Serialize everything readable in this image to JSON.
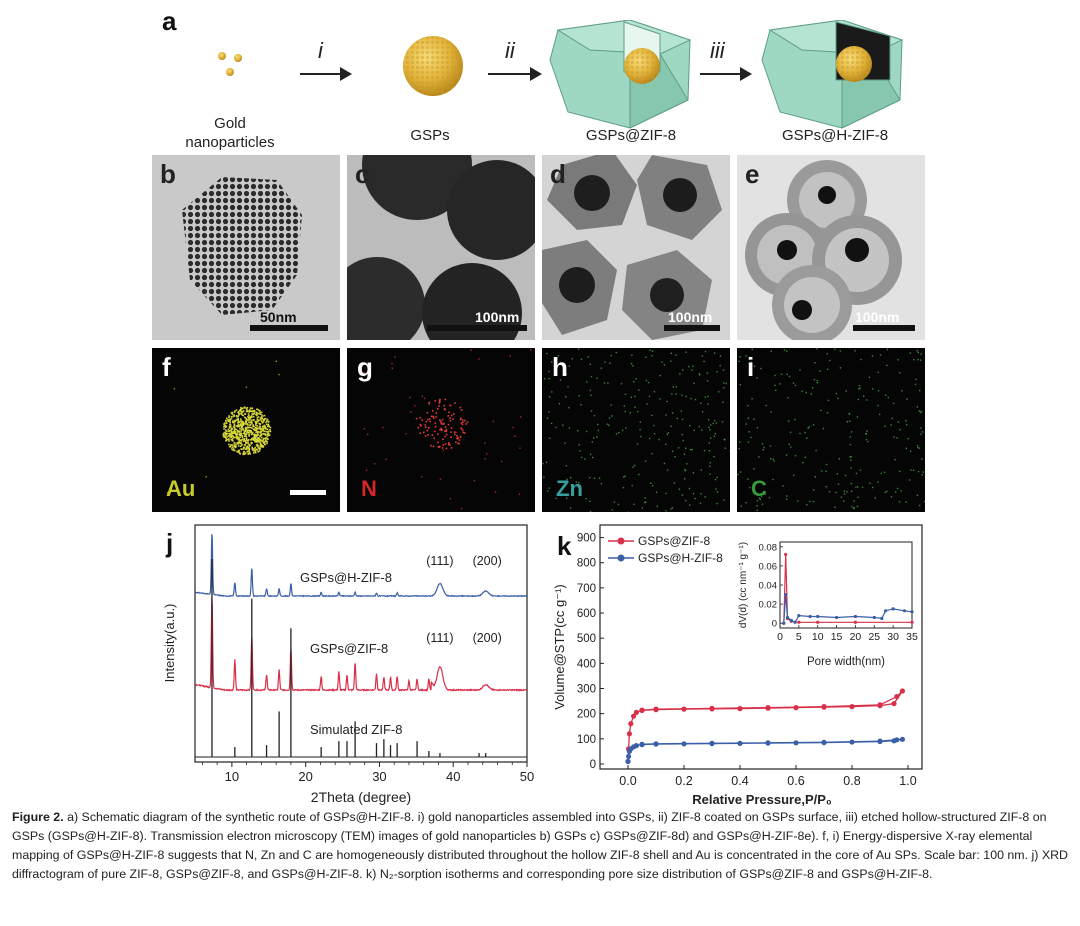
{
  "panels": {
    "a": "a",
    "b": "b",
    "c": "c",
    "d": "d",
    "e": "e",
    "f": "f",
    "g": "g",
    "h": "h",
    "i": "i",
    "j": "j",
    "k": "k"
  },
  "scheme": {
    "steps": [
      "i",
      "ii",
      "iii"
    ],
    "labels": [
      "Gold\nnanoparticles",
      "GSPs",
      "GSPs@ZIF-8",
      "GSPs@H-ZIF-8"
    ],
    "colors": {
      "gold": "#e2b33a",
      "shell": "#9ed8c2",
      "shell_dark": "#6fb79c",
      "cavity": "#1a1a1a"
    }
  },
  "tem": {
    "b_scale": "50nm",
    "c_scale": "100nm",
    "d_scale": "100nm",
    "e_scale": "100nm"
  },
  "eds": {
    "elements": [
      {
        "symbol": "Au",
        "color": "#c9c92a"
      },
      {
        "symbol": "N",
        "color": "#d02828"
      },
      {
        "symbol": "Zn",
        "color": "#35a0a0"
      },
      {
        "symbol": "C",
        "color": "#3a9a3a"
      }
    ]
  },
  "chart_data": [
    {
      "type": "line",
      "panel": "j",
      "xlabel": "2Theta (degree)",
      "ylabel": "Intensity(a.u.)",
      "xlim": [
        5,
        50
      ],
      "xticks": [
        10,
        20,
        30,
        40,
        50
      ],
      "series": [
        {
          "name": "GSPs@H-ZIF-8",
          "color": "#3a5fa8",
          "peaks": [
            [
              7.3,
              1.0
            ],
            [
              10.4,
              0.22
            ],
            [
              12.7,
              0.45
            ],
            [
              14.7,
              0.12
            ],
            [
              16.4,
              0.12
            ],
            [
              18.0,
              0.2
            ],
            [
              22.1,
              0.06
            ],
            [
              24.5,
              0.06
            ],
            [
              26.7,
              0.06
            ],
            [
              29.6,
              0.05
            ],
            [
              32.4,
              0.05
            ],
            [
              38.2,
              0.2
            ],
            [
              44.4,
              0.08
            ]
          ]
        },
        {
          "name": "GSPs@ZIF-8",
          "color": "#d9304a",
          "peaks": [
            [
              7.3,
              1.0
            ],
            [
              10.4,
              0.33
            ],
            [
              12.7,
              0.6
            ],
            [
              14.7,
              0.17
            ],
            [
              16.4,
              0.22
            ],
            [
              18.0,
              0.45
            ],
            [
              22.1,
              0.15
            ],
            [
              24.5,
              0.2
            ],
            [
              25.6,
              0.16
            ],
            [
              26.7,
              0.3
            ],
            [
              29.6,
              0.18
            ],
            [
              30.6,
              0.14
            ],
            [
              31.5,
              0.14
            ],
            [
              32.4,
              0.15
            ],
            [
              34.0,
              0.1
            ],
            [
              35.1,
              0.12
            ],
            [
              36.7,
              0.12
            ],
            [
              38.2,
              0.25
            ],
            [
              44.4,
              0.06
            ]
          ]
        },
        {
          "name": "Simulated ZIF-8",
          "color": "#222222",
          "peaks": [
            [
              7.3,
              1.0
            ],
            [
              10.4,
              0.05
            ],
            [
              12.7,
              0.8
            ],
            [
              14.7,
              0.06
            ],
            [
              16.4,
              0.23
            ],
            [
              18.0,
              0.65
            ],
            [
              22.1,
              0.05
            ],
            [
              24.5,
              0.08
            ],
            [
              25.6,
              0.08
            ],
            [
              26.7,
              0.18
            ],
            [
              29.6,
              0.07
            ],
            [
              30.6,
              0.09
            ],
            [
              31.5,
              0.06
            ],
            [
              32.4,
              0.07
            ],
            [
              35.1,
              0.08
            ],
            [
              36.7,
              0.03
            ],
            [
              38.2,
              0.02
            ],
            [
              43.5,
              0.02
            ],
            [
              44.4,
              0.02
            ]
          ]
        }
      ],
      "annotations": [
        "(111)",
        "(200)",
        "(111)",
        "(200)"
      ]
    },
    {
      "type": "line",
      "panel": "k",
      "xlabel": "Relative Pressure,P/P₀",
      "ylabel": "Volume@STP(cc g⁻¹)",
      "xlim": [
        -0.1,
        1.05
      ],
      "xticks": [
        0.0,
        0.2,
        0.4,
        0.6,
        0.8,
        1.0
      ],
      "yticks": [
        0,
        100,
        200,
        300,
        400,
        500,
        600,
        700,
        800,
        900
      ],
      "ylim": [
        -20,
        950
      ],
      "legend": "top-left",
      "series": [
        {
          "name": "GSPs@ZIF-8",
          "color": "#d9304a",
          "points": [
            [
              0.0,
              10
            ],
            [
              0.002,
              60
            ],
            [
              0.005,
              120
            ],
            [
              0.01,
              160
            ],
            [
              0.02,
              190
            ],
            [
              0.03,
              205
            ],
            [
              0.05,
              213
            ],
            [
              0.1,
              216
            ],
            [
              0.2,
              218
            ],
            [
              0.3,
              219
            ],
            [
              0.4,
              220
            ],
            [
              0.5,
              222
            ],
            [
              0.6,
              224
            ],
            [
              0.7,
              226
            ],
            [
              0.8,
              228
            ],
            [
              0.9,
              232
            ],
            [
              0.95,
              240
            ],
            [
              0.98,
              290
            ],
            [
              0.96,
              268
            ],
            [
              0.9,
              235
            ],
            [
              0.7,
              228
            ],
            [
              0.5,
              224
            ],
            [
              0.3,
              221
            ],
            [
              0.1,
              218
            ],
            [
              0.05,
              214
            ]
          ]
        },
        {
          "name": "GSPs@H-ZIF-8",
          "color": "#3a5fa8",
          "points": [
            [
              0.0,
              10
            ],
            [
              0.002,
              30
            ],
            [
              0.005,
              50
            ],
            [
              0.01,
              60
            ],
            [
              0.02,
              68
            ],
            [
              0.03,
              73
            ],
            [
              0.05,
              77
            ],
            [
              0.1,
              79
            ],
            [
              0.2,
              80
            ],
            [
              0.3,
              81
            ],
            [
              0.4,
              82
            ],
            [
              0.5,
              83
            ],
            [
              0.6,
              84
            ],
            [
              0.7,
              85
            ],
            [
              0.8,
              87
            ],
            [
              0.9,
              89
            ],
            [
              0.95,
              92
            ],
            [
              0.98,
              98
            ],
            [
              0.96,
              96
            ],
            [
              0.9,
              91
            ],
            [
              0.7,
              86
            ],
            [
              0.5,
              84
            ],
            [
              0.3,
              82
            ],
            [
              0.1,
              80
            ],
            [
              0.05,
              78
            ]
          ]
        }
      ],
      "inset": {
        "type": "line",
        "xlabel": "Pore width(nm)",
        "ylabel": "dV(d) (cc nm⁻¹ g⁻¹)",
        "xlim": [
          0,
          35
        ],
        "ylim": [
          -0.005,
          0.085
        ],
        "xticks": [
          0,
          5,
          10,
          15,
          20,
          25,
          30,
          35
        ],
        "yticks": [
          0,
          0.02,
          0.04,
          0.06,
          0.08
        ],
        "series": [
          {
            "name": "GSPs@ZIF-8",
            "color": "#d9304a",
            "points": [
              [
                1,
                0.0
              ],
              [
                1.5,
                0.072
              ],
              [
                2,
                0.005
              ],
              [
                3,
                0.002
              ],
              [
                5,
                0.001
              ],
              [
                10,
                0.001
              ],
              [
                20,
                0.001
              ],
              [
                35,
                0.001
              ]
            ]
          },
          {
            "name": "GSPs@H-ZIF-8",
            "color": "#3a5fa8",
            "points": [
              [
                1,
                0.0
              ],
              [
                1.5,
                0.03
              ],
              [
                2,
                0.006
              ],
              [
                3,
                0.003
              ],
              [
                4,
                0.001
              ],
              [
                5,
                0.008
              ],
              [
                8,
                0.007
              ],
              [
                10,
                0.007
              ],
              [
                15,
                0.006
              ],
              [
                20,
                0.007
              ],
              [
                25,
                0.006
              ],
              [
                27,
                0.005
              ],
              [
                28,
                0.013
              ],
              [
                30,
                0.015
              ],
              [
                33,
                0.013
              ],
              [
                35,
                0.012
              ]
            ]
          }
        ]
      }
    }
  ],
  "caption": {
    "label": "Figure 2.",
    "text": "a) Schematic diagram of the synthetic route of GSPs@H-ZIF-8. i) gold nanoparticles assembled into GSPs, ii) ZIF-8 coated on GSPs surface, iii) etched hollow-structured ZIF-8 on GSPs (GSPs@H-ZIF-8). Transmission electron microscopy (TEM) images of gold nanoparticles b) GSPs c) GSPs@ZIF-8d) and GSPs@H-ZIF-8e). f, i) Energy-dispersive X-ray elemental mapping of GSPs@H-ZIF-8 suggests that N, Zn and C are homogeneously distributed throughout the hollow ZIF-8 shell and Au is concentrated in the core of Au SPs. Scale bar: 100 nm. j) XRD diffractogram of pure ZIF-8, GSPs@ZIF-8, and GSPs@H-ZIF-8. k) N₂-sorption isotherms and corresponding pore size distribution of GSPs@ZIF-8 and GSPs@H-ZIF-8."
  }
}
